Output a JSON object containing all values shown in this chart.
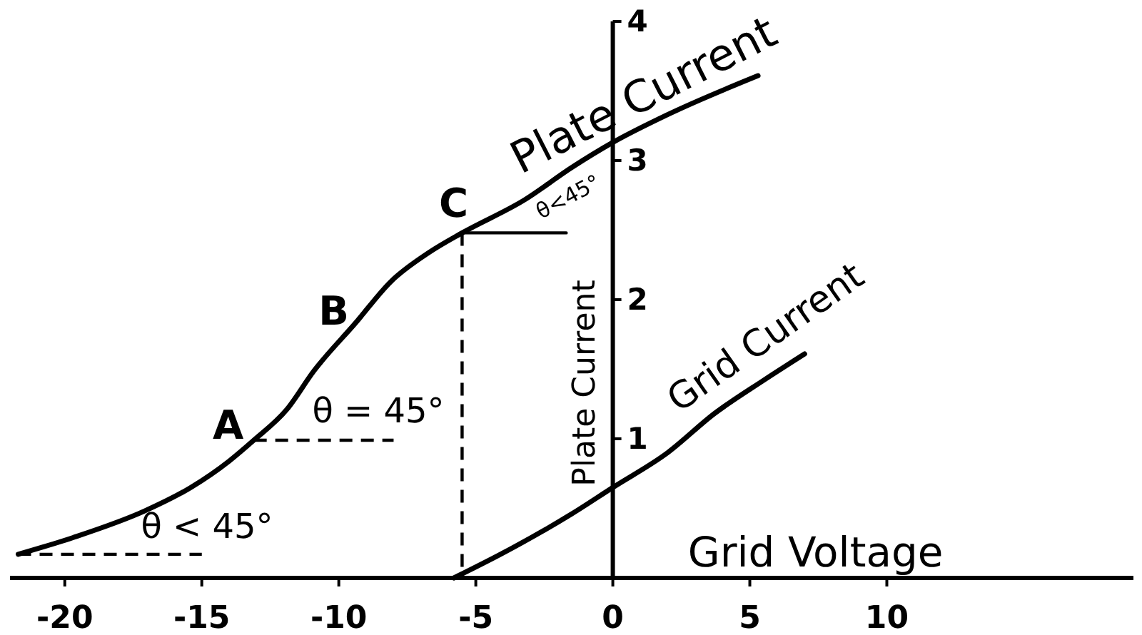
{
  "chart_data": {
    "type": "line",
    "xlabel": "Grid Voltage",
    "ylabel": "Plate Current",
    "xlim": [
      -22,
      19
    ],
    "ylim": [
      0,
      4
    ],
    "xticks": [
      -20,
      -15,
      -10,
      -5,
      0,
      5,
      10
    ],
    "yticks": [
      1,
      2,
      3,
      4
    ],
    "series": [
      {
        "name": "Plate Current",
        "color": "#000000",
        "x": [
          -21.7,
          -19.7,
          -17.1,
          -15.4,
          -14.0,
          -13.1,
          -11.9,
          -10.9,
          -9.4,
          -8.1,
          -6.7,
          -5.5,
          -3.2,
          -1.5,
          0,
          2.0,
          5.3
        ],
        "values": [
          0.17,
          0.29,
          0.48,
          0.65,
          0.84,
          0.99,
          1.21,
          1.49,
          1.83,
          2.13,
          2.34,
          2.48,
          2.72,
          2.95,
          3.13,
          3.33,
          3.61
        ]
      },
      {
        "name": "Grid Current",
        "color": "#000000",
        "x": [
          -5.8,
          -4,
          -1.5,
          0,
          2,
          3.7,
          5.5,
          7.0
        ],
        "values": [
          0,
          0.18,
          0.46,
          0.65,
          0.9,
          1.18,
          1.42,
          1.61
        ]
      },
      {
        "color": "#000000",
        "line_style": "dashed",
        "x": [
          -21.7,
          -15
        ],
        "values": [
          0.17,
          0.17
        ]
      },
      {
        "color": "#000000",
        "line_style": "dashed",
        "x": [
          -13.1,
          -8.0
        ],
        "values": [
          0.99,
          0.99
        ]
      },
      {
        "color": "#000000",
        "line_style": "dashed",
        "x": [
          -5.5,
          -5.5
        ],
        "values": [
          2.48,
          0
        ]
      },
      {
        "color": "#000000",
        "line_style": "solid",
        "x": [
          -5.5,
          -1.7
        ],
        "values": [
          2.48,
          2.48
        ]
      }
    ],
    "annotations": [
      {
        "text": "A",
        "x": -13.1,
        "y": 0.99
      },
      {
        "text": "B",
        "x": -9.4,
        "y": 1.83
      },
      {
        "text": "C",
        "x": -5.5,
        "y": 2.48
      },
      "θ = 45°",
      "θ < 45°",
      "θ<45°"
    ]
  }
}
